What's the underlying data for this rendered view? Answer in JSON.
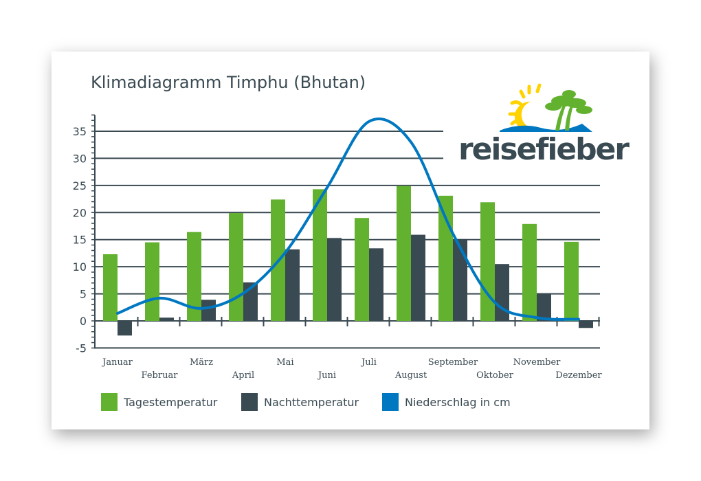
{
  "chart_data": {
    "type": "bar",
    "title": "Klimadiagramm Timphu (Bhutan)",
    "categories": [
      "Januar",
      "Februar",
      "März",
      "April",
      "Mai",
      "Juni",
      "Juli",
      "August",
      "September",
      "Oktober",
      "November",
      "Dezember"
    ],
    "ylim": [
      -5,
      38
    ],
    "yticks": [
      -5,
      0,
      5,
      10,
      15,
      20,
      25,
      30,
      35
    ],
    "grid": true,
    "legend_position": "bottom",
    "series": [
      {
        "name": "Tagestemperatur",
        "type": "bar",
        "color": "#62b22f",
        "values": [
          12.3,
          14.5,
          16.4,
          19.9,
          22.4,
          24.3,
          19.0,
          24.9,
          23.1,
          21.9,
          17.9,
          14.6
        ]
      },
      {
        "name": "Nachttemperatur",
        "type": "bar",
        "color": "#3a4a52",
        "values": [
          -2.7,
          0.6,
          3.9,
          7.1,
          13.2,
          15.3,
          13.4,
          15.9,
          15.1,
          10.5,
          5.1,
          -1.3
        ]
      },
      {
        "name": "Niederschlag in cm",
        "type": "line",
        "color": "#0078c1",
        "values": [
          1.4,
          4.2,
          2.3,
          5.1,
          12.6,
          24.6,
          36.8,
          33.0,
          16.1,
          3.4,
          0.6,
          0.3
        ]
      }
    ]
  },
  "logo": {
    "text": "reisefieber"
  }
}
